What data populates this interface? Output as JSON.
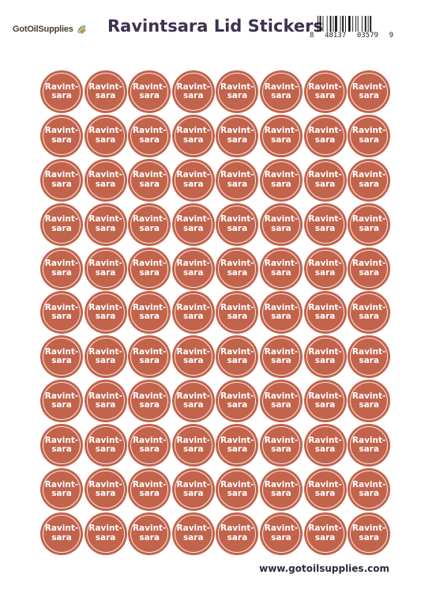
{
  "header": {
    "logo_text": "GotOilSupplies",
    "logo_icon": "leaf-icon",
    "title": "Ravintsara Lid Stickers",
    "barcode": {
      "digit_first": "8",
      "group_left": "48137",
      "group_right": "03579",
      "digit_last": "9"
    }
  },
  "sheet": {
    "rows": 11,
    "columns": 8,
    "sticker_label": "Ravint-\nsara",
    "sticker_color": "#c2634c"
  },
  "footer": {
    "url": "www.gotoilsupplies.com"
  }
}
